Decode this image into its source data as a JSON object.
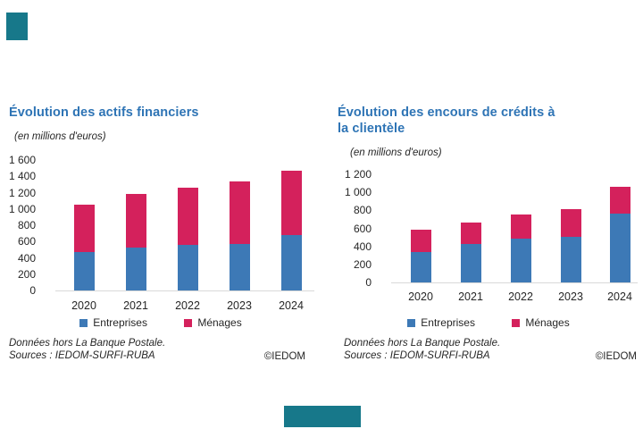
{
  "page": {
    "background": "#ffffff",
    "accent_teal": "#17788A",
    "title_color": "#2E74B5",
    "axis_line_color": "#d9d9d9"
  },
  "footer": {
    "note_line1": "Données hors La Banque Postale.",
    "note_line2": "Sources : IEDOM-SURFI-RUBA",
    "copyright": "©IEDOM"
  },
  "chart_data": [
    {
      "type": "bar",
      "stacked": true,
      "title": "Évolution des actifs financiers",
      "subtitle": "(en millions d'euros)",
      "categories": [
        "2020",
        "2021",
        "2022",
        "2023",
        "2024"
      ],
      "series": [
        {
          "name": "Entreprises",
          "color": "#3D79B6",
          "values": [
            470,
            530,
            560,
            575,
            675
          ]
        },
        {
          "name": "Ménages",
          "color": "#D4215C",
          "values": [
            580,
            650,
            705,
            760,
            795
          ]
        }
      ],
      "totals": [
        1050,
        1180,
        1265,
        1335,
        1470
      ],
      "ylim": [
        0,
        1600
      ],
      "ytick_step": 200,
      "grid": false,
      "legend_position": "bottom"
    },
    {
      "type": "bar",
      "stacked": true,
      "title": "Évolution des encours de crédits à la clientèle",
      "subtitle": "(en millions d'euros)",
      "categories": [
        "2020",
        "2021",
        "2022",
        "2023",
        "2024"
      ],
      "series": [
        {
          "name": "Entreprises",
          "color": "#3D79B6",
          "values": [
            335,
            425,
            485,
            505,
            765
          ]
        },
        {
          "name": "Ménages",
          "color": "#D4215C",
          "values": [
            255,
            240,
            270,
            310,
            295
          ]
        }
      ],
      "totals": [
        590,
        665,
        755,
        815,
        1060
      ],
      "ylim": [
        0,
        1200
      ],
      "ytick_step": 200,
      "grid": false,
      "legend_position": "bottom"
    }
  ]
}
